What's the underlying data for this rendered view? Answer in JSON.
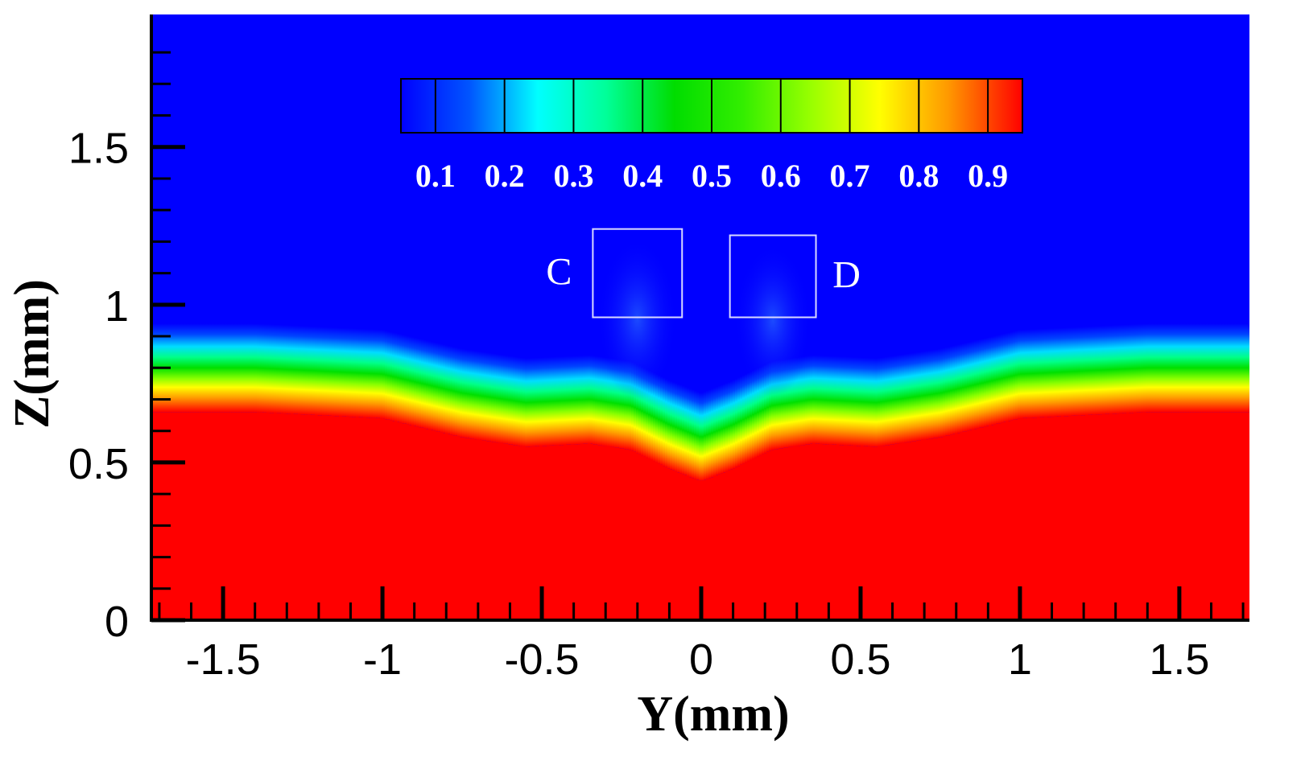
{
  "chart_data": {
    "type": "heatmap",
    "title": "",
    "xlabel": "Y(mm)",
    "ylabel": "Z(mm)",
    "xlim": [
      -1.72,
      1.72
    ],
    "ylim": [
      0,
      1.92
    ],
    "x_ticks": [
      -1.5,
      -1,
      -0.5,
      0,
      0.5,
      1,
      1.5
    ],
    "x_tick_labels": [
      "-1.5",
      "-1",
      "-0.5",
      "0",
      "0.5",
      "1",
      "1.5"
    ],
    "y_ticks": [
      0,
      0.5,
      1,
      1.5
    ],
    "y_tick_labels": [
      "0",
      "0.5",
      "1",
      "1.5"
    ],
    "colorbar": {
      "labels": [
        "0.1",
        "0.2",
        "0.3",
        "0.4",
        "0.5",
        "0.6",
        "0.7",
        "0.8",
        "0.9"
      ],
      "levels": [
        0.1,
        0.2,
        0.3,
        0.4,
        0.5,
        0.6,
        0.7,
        0.8,
        0.9
      ],
      "min": 0.05,
      "max": 0.95,
      "colors": [
        "#0000ff",
        "#0055ff",
        "#00ffff",
        "#00ff99",
        "#00dd00",
        "#33ee00",
        "#99ff00",
        "#ffff00",
        "#ff9900",
        "#ff0000"
      ]
    },
    "interface": {
      "description": "field is ~1 (red) below the interface and ~0 (blue) above",
      "y": [
        -1.72,
        -1.4,
        -1.0,
        -0.75,
        -0.55,
        -0.35,
        -0.22,
        -0.1,
        0.0,
        0.1,
        0.22,
        0.35,
        0.55,
        0.75,
        1.0,
        1.4,
        1.72
      ],
      "z": [
        0.8,
        0.8,
        0.78,
        0.72,
        0.69,
        0.7,
        0.68,
        0.62,
        0.58,
        0.62,
        0.68,
        0.7,
        0.69,
        0.72,
        0.78,
        0.8,
        0.8
      ]
    },
    "regions": [
      {
        "label": "C",
        "y_range": [
          -0.34,
          -0.06
        ],
        "z_range": [
          0.96,
          1.24
        ]
      },
      {
        "label": "D",
        "y_range": [
          0.09,
          0.36
        ],
        "z_range": [
          0.96,
          1.22
        ]
      }
    ]
  }
}
